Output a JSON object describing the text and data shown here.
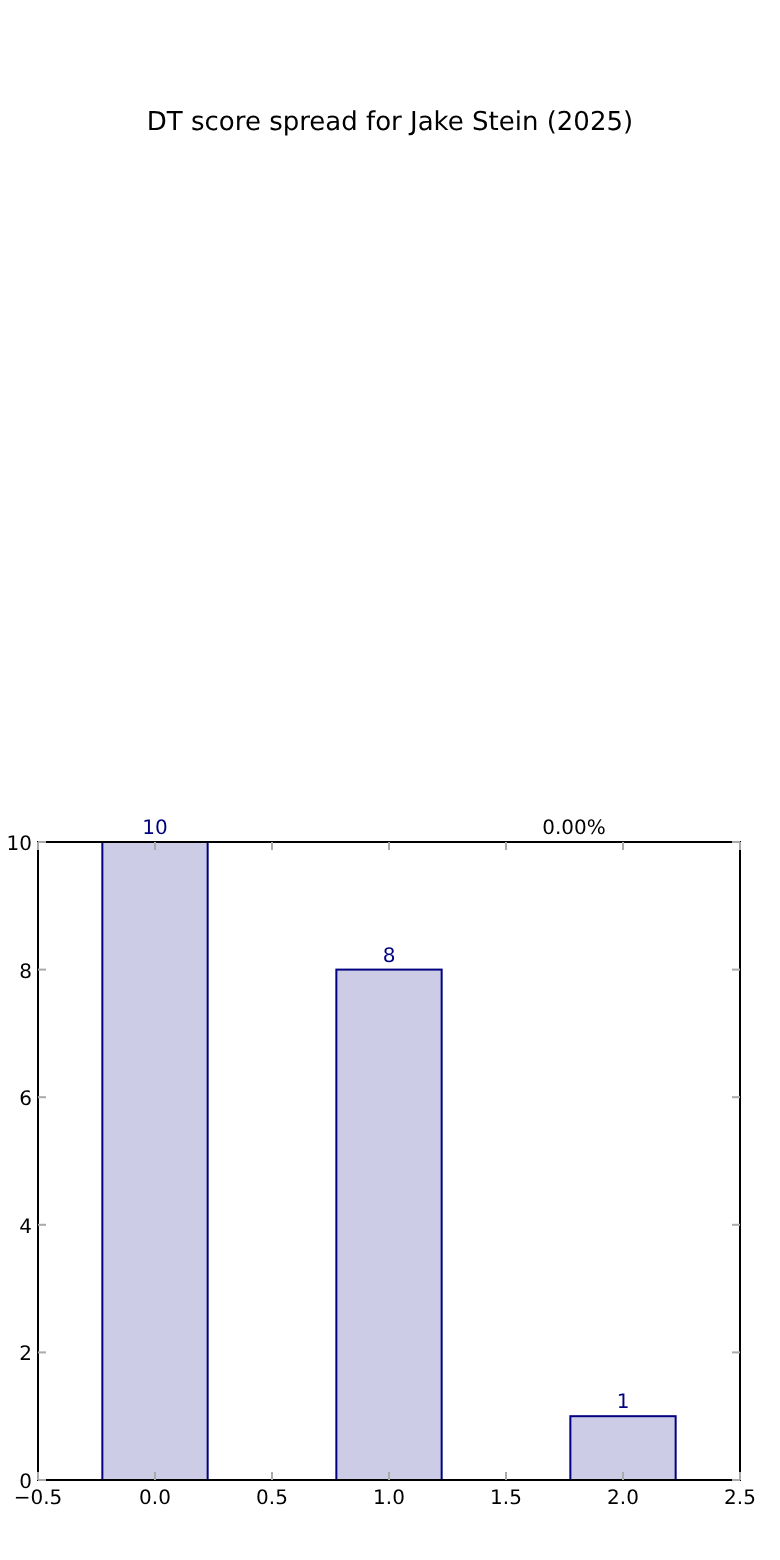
{
  "chart_data": {
    "type": "bar",
    "title": "DT score spread for Jake Stein (2025)",
    "x": [
      0,
      1,
      2
    ],
    "values": [
      10,
      8,
      1
    ],
    "color": "#ccccE6",
    "xlim": [
      -0.5,
      2.5
    ],
    "xticks": [
      {
        "value": -0.5,
        "label": "−0.5"
      },
      {
        "value": 0,
        "label": "0.0"
      },
      0.5,
      {
        "value": 1,
        "label": "1.0"
      },
      1.5,
      {
        "value": 2,
        "label": "2.0"
      },
      2.5
    ],
    "ylim": [
      0,
      10
    ],
    "yticks": [
      0,
      2,
      4,
      6,
      8,
      10
    ],
    "data_labels": true,
    "annotations": [
      "0.00%"
    ]
  }
}
